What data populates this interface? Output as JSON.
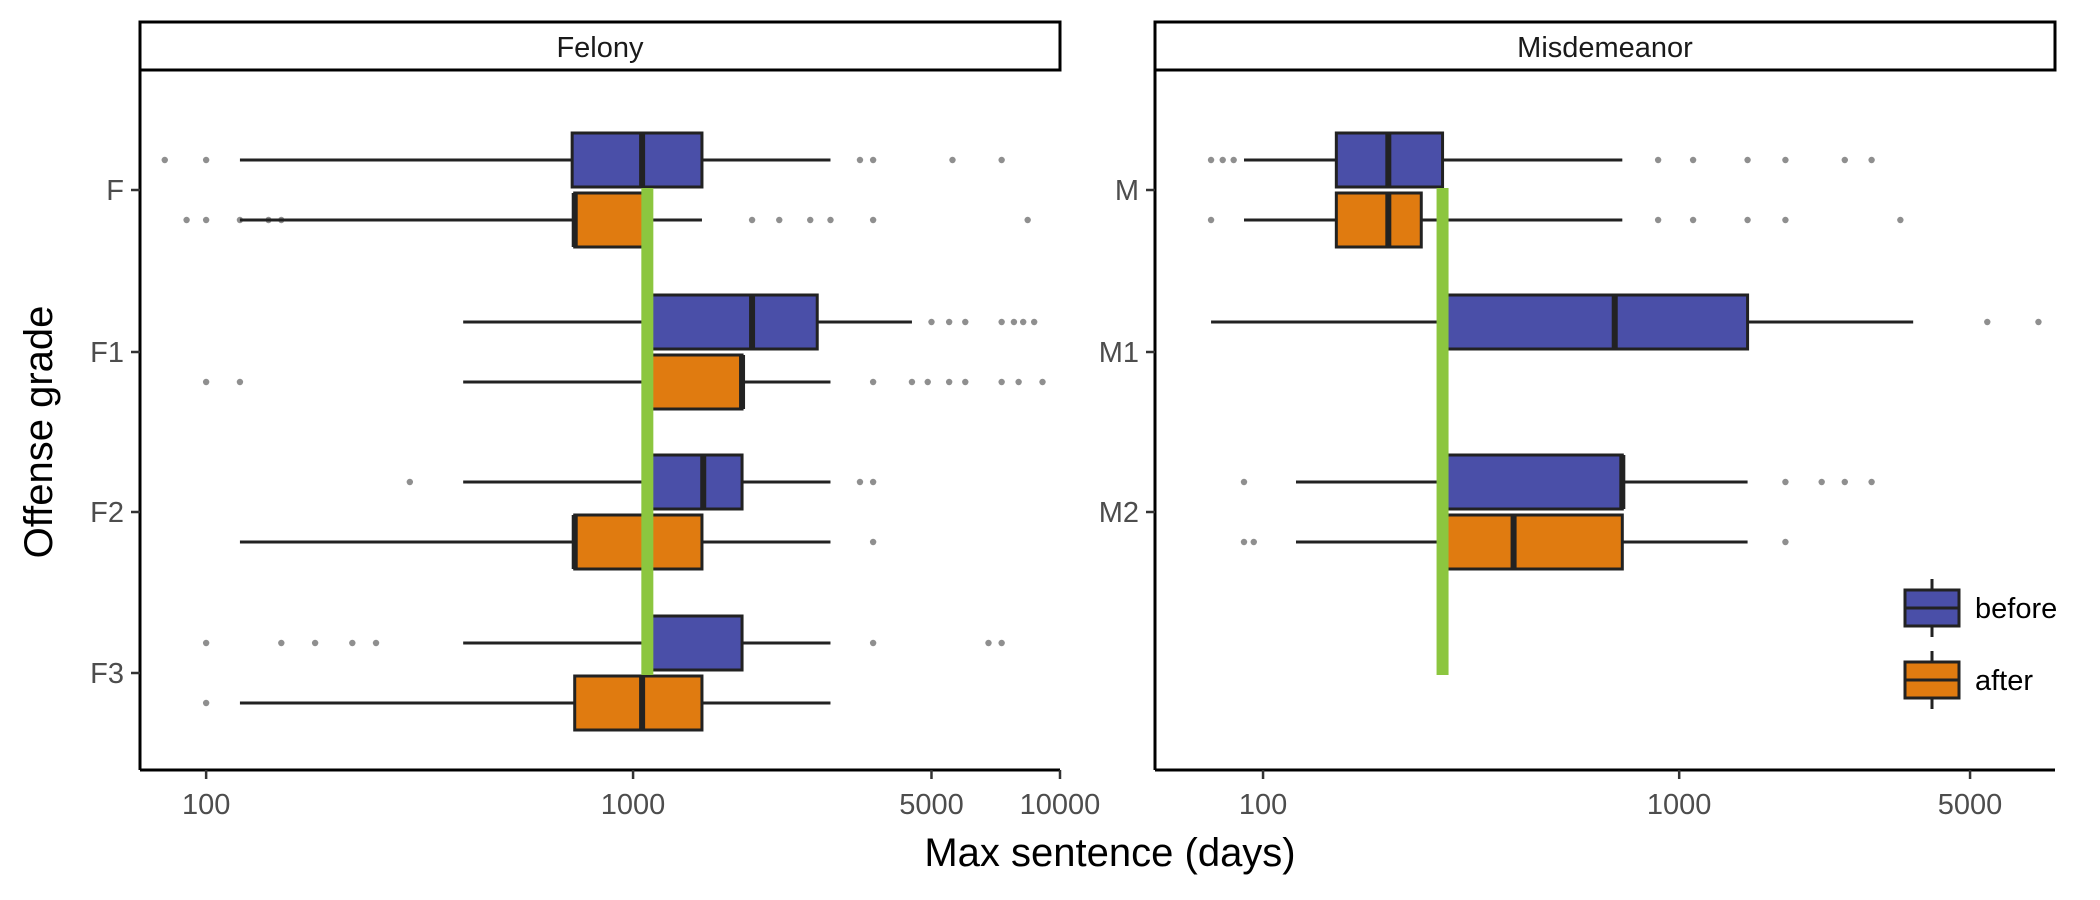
{
  "chart_data": {
    "type": "boxplot",
    "xlabel": "Max sentence (days)",
    "ylabel": "Offense grade",
    "x_scale": "log",
    "legend": {
      "placement": "bottom-right",
      "entries": [
        {
          "key": "before",
          "label": "before",
          "color": "#4a4fa8"
        },
        {
          "key": "after",
          "label": "after",
          "color": "#e07b10"
        }
      ]
    },
    "reference_line_color": "#8cc63f",
    "panels": [
      {
        "title": "Felony",
        "xlim": [
          70,
          10000
        ],
        "xticks": [
          {
            "value": 100,
            "label": "100"
          },
          {
            "value": 1000,
            "label": "1000"
          },
          {
            "value": 5000,
            "label": "5000"
          },
          {
            "value": 10000,
            "label": "10000"
          }
        ],
        "reference_line": 1080,
        "groups": [
          {
            "grade": "F",
            "before": {
              "whisker_low": 120,
              "q1": 720,
              "median": 1050,
              "q3": 1450,
              "whisker_high": 2900,
              "outliers": [
                80,
                100,
                3400,
                3650,
                5600,
                7300
              ]
            },
            "after": {
              "whisker_low": 120,
              "q1": 730,
              "median": 730,
              "q3": 1080,
              "whisker_high": 1450,
              "outliers": [
                90,
                100,
                120,
                140,
                150,
                1900,
                2200,
                2600,
                2900,
                3650,
                8400
              ]
            }
          },
          {
            "grade": "F1",
            "before": {
              "whisker_low": 400,
              "q1": 1080,
              "median": 1900,
              "q3": 2700,
              "whisker_high": 4500,
              "outliers": [
                5000,
                5500,
                6000,
                7300,
                7800,
                8200,
                8700
              ]
            },
            "after": {
              "whisker_low": 400,
              "q1": 1080,
              "median": 1800,
              "q3": 1800,
              "whisker_high": 2900,
              "outliers": [
                100,
                120,
                3650,
                4500,
                4900,
                5500,
                6000,
                7300,
                8000,
                9100
              ]
            }
          },
          {
            "grade": "F2",
            "before": {
              "whisker_low": 400,
              "q1": 1080,
              "median": 1460,
              "q3": 1800,
              "whisker_high": 2900,
              "outliers": [
                300,
                3400,
                3650
              ]
            },
            "after": {
              "whisker_low": 120,
              "q1": 730,
              "median": 730,
              "q3": 1450,
              "whisker_high": 2900,
              "outliers": [
                3650
              ]
            }
          },
          {
            "grade": "F3",
            "before": {
              "whisker_low": 400,
              "q1": 1080,
              "median": 1080,
              "q3": 1800,
              "whisker_high": 2900,
              "outliers": [
                100,
                150,
                180,
                220,
                250,
                3650,
                6800,
                7300
              ]
            },
            "after": {
              "whisker_low": 120,
              "q1": 730,
              "median": 1050,
              "q3": 1450,
              "whisker_high": 2900,
              "outliers": [
                100
              ]
            }
          }
        ]
      },
      {
        "title": "Misdemeanor",
        "xlim": [
          55,
          8000
        ],
        "xticks": [
          {
            "value": 100,
            "label": "100"
          },
          {
            "value": 1000,
            "label": "1000"
          },
          {
            "value": 5000,
            "label": "5000"
          }
        ],
        "reference_line": 270,
        "groups": [
          {
            "grade": "M",
            "before": {
              "whisker_low": 90,
              "q1": 150,
              "median": 200,
              "q3": 270,
              "whisker_high": 730,
              "outliers": [
                75,
                80,
                85,
                890,
                1080,
                1460,
                1800,
                2500,
                2900
              ]
            },
            "after": {
              "whisker_low": 90,
              "q1": 150,
              "median": 200,
              "q3": 240,
              "whisker_high": 730,
              "outliers": [
                75,
                890,
                1080,
                1460,
                1800,
                3400
              ]
            }
          },
          {
            "grade": "M1",
            "before": {
              "whisker_low": 75,
              "q1": 270,
              "median": 700,
              "q3": 1460,
              "whisker_high": 3650,
              "outliers": [
                5500,
                7300
              ]
            }
          },
          {
            "grade": "M2",
            "before": {
              "whisker_low": 120,
              "q1": 270,
              "median": 730,
              "q3": 730,
              "whisker_high": 1460,
              "outliers": [
                90,
                1800,
                2200,
                2500,
                2900
              ]
            },
            "after": {
              "whisker_low": 120,
              "q1": 270,
              "median": 400,
              "q3": 730,
              "whisker_high": 1460,
              "outliers": [
                90,
                95,
                1800
              ]
            }
          }
        ]
      }
    ]
  }
}
